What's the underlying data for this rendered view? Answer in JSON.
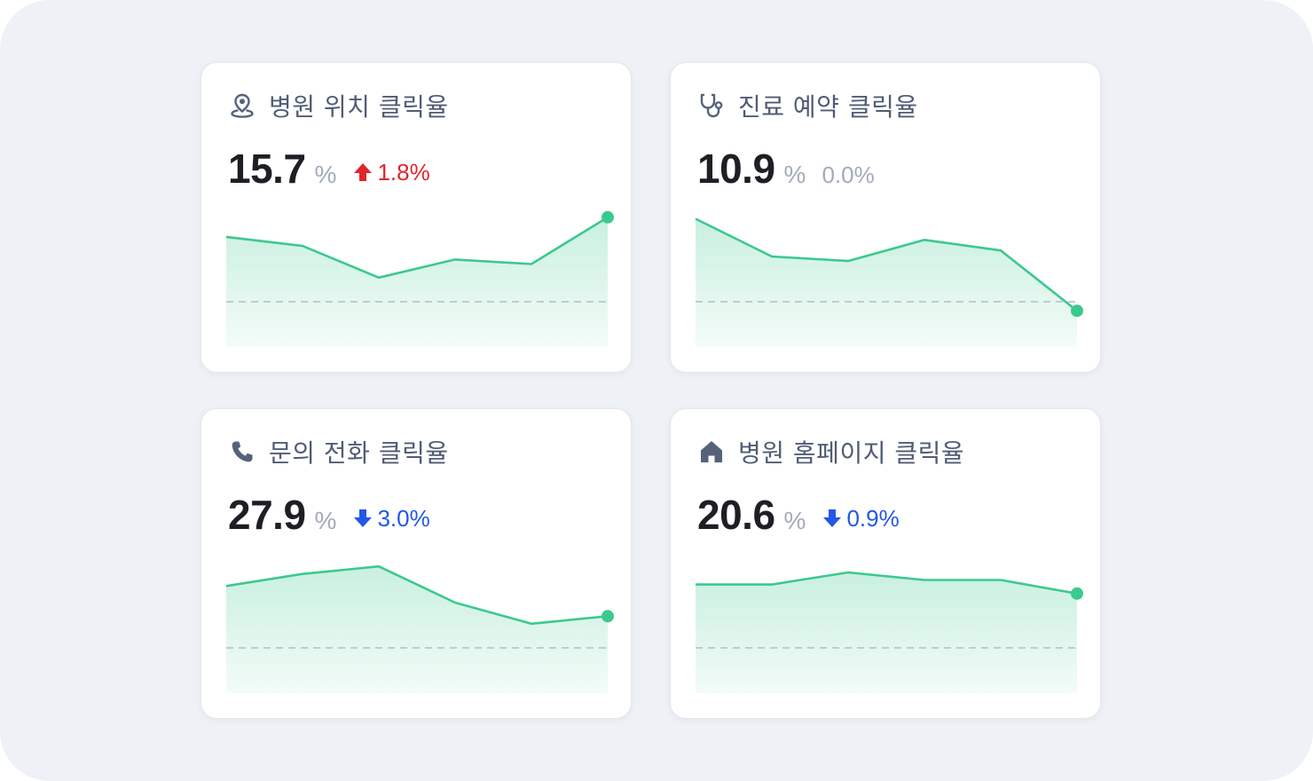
{
  "colors": {
    "background": "#eef1f5",
    "card": "#ffffff",
    "line": "#3cc98e",
    "up": "#e0262c",
    "down": "#2457e6",
    "neutral": "#a2abb9",
    "baseline": "#c3c9d4"
  },
  "cards": [
    {
      "title": "병원 위치 클릭율",
      "icon": "location-pin-icon",
      "value": "15.7",
      "unit": "%",
      "change": "1.8%",
      "direction": "up",
      "chart_data": {
        "type": "area",
        "values": [
          73,
          67,
          46,
          58,
          55,
          86
        ],
        "baseline": 30,
        "ylim": [
          0,
          100
        ]
      }
    },
    {
      "title": "진료 예약 클릭율",
      "icon": "stethoscope-icon",
      "value": "10.9",
      "unit": "%",
      "change": "0.0%",
      "direction": "flat",
      "chart_data": {
        "type": "area",
        "values": [
          85,
          60,
          57,
          71,
          64,
          24
        ],
        "baseline": 30,
        "ylim": [
          0,
          100
        ]
      }
    },
    {
      "title": "문의 전화 클릭율",
      "icon": "phone-icon",
      "value": "27.9",
      "unit": "%",
      "change": "3.0%",
      "direction": "down",
      "chart_data": {
        "type": "area",
        "values": [
          71,
          79,
          84,
          60,
          46,
          51
        ],
        "baseline": 30,
        "ylim": [
          0,
          100
        ]
      }
    },
    {
      "title": "병원 홈페이지 클릭율",
      "icon": "home-icon",
      "value": "20.6",
      "unit": "%",
      "change": "0.9%",
      "direction": "down",
      "chart_data": {
        "type": "area",
        "values": [
          72,
          72,
          80,
          75,
          75,
          66
        ],
        "baseline": 30,
        "ylim": [
          0,
          100
        ]
      }
    }
  ]
}
